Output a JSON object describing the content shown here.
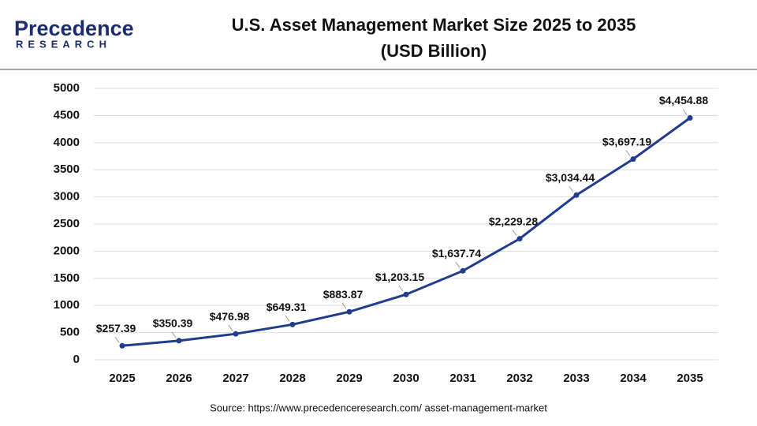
{
  "logo": {
    "name": "Precedence",
    "tagline": "RESEARCH"
  },
  "chart_data": {
    "type": "line",
    "title": "U.S. Asset Management Market Size 2025 to 2035",
    "subtitle": "(USD Billion)",
    "categories": [
      "2025",
      "2026",
      "2027",
      "2028",
      "2029",
      "2030",
      "2031",
      "2032",
      "2033",
      "2034",
      "2035"
    ],
    "values": [
      257.39,
      350.39,
      476.98,
      649.31,
      883.87,
      1203.15,
      1637.74,
      2229.28,
      3034.44,
      3697.19,
      4454.88
    ],
    "value_labels": [
      "$257.39",
      "$350.39",
      "$476.98",
      "$649.31",
      "$883.87",
      "$1,203.15",
      "$1,637.74",
      "$2,229.28",
      "$3,034.44",
      "$3,697.19",
      "$4,454.88"
    ],
    "color": "#1f3c8f",
    "ylim": [
      0,
      5000
    ],
    "yticks": [
      0,
      500,
      1000,
      1500,
      2000,
      2500,
      3000,
      3500,
      4000,
      4500,
      5000
    ],
    "grid": true,
    "source": "Source: https://www.precedenceresearch.com/ asset-management-market"
  }
}
